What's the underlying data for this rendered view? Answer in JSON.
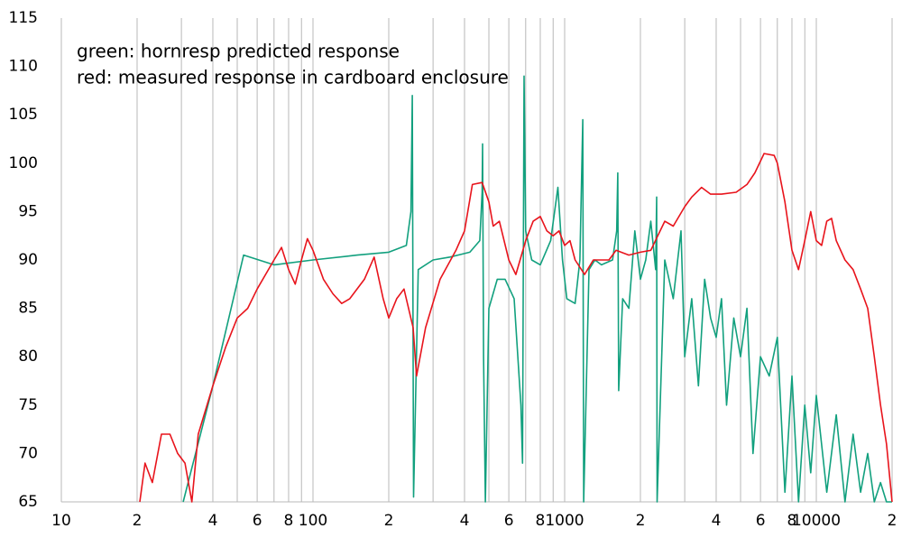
{
  "chart_data": {
    "type": "line",
    "xscale": "log",
    "annotations": [
      {
        "text": "green: hornresp predicted response",
        "color": "#12a07e"
      },
      {
        "text": "red: measured response in cardboard enclosure",
        "color": "#e8141c"
      }
    ],
    "xlim": [
      10,
      20000
    ],
    "ylim": [
      65,
      115
    ],
    "yticks": [
      65,
      70,
      75,
      80,
      85,
      90,
      95,
      100,
      105,
      110,
      115
    ],
    "xticks": [
      10,
      {
        "value": 20,
        "label": "2"
      },
      {
        "value": 40,
        "label": "4"
      },
      {
        "value": 60,
        "label": "6"
      },
      {
        "value": 80,
        "label": "8"
      },
      100,
      {
        "value": 200,
        "label": "2"
      },
      {
        "value": 400,
        "label": "4"
      },
      {
        "value": 600,
        "label": "6"
      },
      {
        "value": 800,
        "label": "8"
      },
      1000,
      {
        "value": 2000,
        "label": "2"
      },
      {
        "value": 4000,
        "label": "4"
      },
      {
        "value": 6000,
        "label": "6"
      },
      {
        "value": 8000,
        "label": "8"
      },
      10000,
      {
        "value": 20000,
        "label": "2"
      }
    ],
    "xgrid": [
      10,
      20,
      30,
      40,
      50,
      60,
      70,
      80,
      90,
      100,
      200,
      300,
      400,
      500,
      600,
      700,
      800,
      900,
      1000,
      2000,
      3000,
      4000,
      5000,
      6000,
      7000,
      8000,
      9000,
      10000,
      20000
    ],
    "grid": true,
    "series": [
      {
        "color": "#12a07e",
        "x": [
          30.5,
          40,
          53,
          70,
          100,
          150,
          200,
          235,
          245,
          248,
          251,
          262,
          300,
          350,
          420,
          460,
          470,
          472,
          476,
          484,
          500,
          540,
          580,
          630,
          670,
          680,
          690,
          700,
          740,
          800,
          880,
          940,
          980,
          1020,
          1100,
          1150,
          1180,
          1190,
          1250,
          1320,
          1400,
          1550,
          1610,
          1626,
          1640,
          1700,
          1800,
          1900,
          2000,
          2100,
          2200,
          2300,
          2320,
          2330,
          2500,
          2700,
          2900,
          3000,
          3200,
          3400,
          3600,
          3800,
          4000,
          4200,
          4400,
          4700,
          5000,
          5300,
          5600,
          6000,
          6500,
          7000,
          7500,
          8000,
          8500,
          9000,
          9500,
          10000,
          11000,
          12000,
          13000,
          14000,
          15000,
          16000,
          17000,
          18000,
          19000,
          20000
        ],
        "values": [
          65,
          77,
          90.5,
          89.5,
          90,
          90.5,
          90.8,
          91.5,
          95,
          107,
          65.5,
          89,
          90,
          90.3,
          90.8,
          92,
          97,
          102,
          80,
          65,
          85,
          88,
          88,
          86,
          75,
          69,
          109,
          93,
          90,
          89.5,
          92,
          97.5,
          90,
          86,
          85.5,
          90,
          104.5,
          65,
          89,
          90,
          89.5,
          90,
          93,
          99,
          76.5,
          86,
          85,
          93,
          88,
          90,
          94,
          89,
          96.5,
          65,
          90,
          86,
          93,
          80,
          86,
          77,
          88,
          84,
          82,
          86,
          75,
          84,
          80,
          85,
          70,
          80,
          78,
          82,
          66,
          78,
          65,
          75,
          68,
          76,
          66,
          74,
          65,
          72,
          66,
          70,
          65,
          67,
          65,
          65
        ]
      },
      {
        "color": "#e8141c",
        "x": [
          20.5,
          21.5,
          23,
          25,
          27,
          29,
          31,
          33,
          35,
          40,
          45,
          50,
          55,
          60,
          70,
          75,
          80,
          85,
          90,
          95,
          100,
          110,
          120,
          130,
          140,
          160,
          175,
          190,
          200,
          215,
          230,
          250,
          258,
          280,
          320,
          370,
          400,
          430,
          470,
          500,
          520,
          550,
          600,
          640,
          700,
          750,
          800,
          850,
          900,
          950,
          1000,
          1050,
          1100,
          1200,
          1300,
          1500,
          1600,
          1800,
          2000,
          2200,
          2500,
          2700,
          3000,
          3200,
          3500,
          3800,
          4200,
          4800,
          5300,
          5700,
          6200,
          6800,
          7000,
          7500,
          8000,
          8500,
          9000,
          9500,
          10000,
          10500,
          11000,
          11500,
          12000,
          13000,
          14000,
          15000,
          16000,
          17000,
          18000,
          19000,
          20000
        ],
        "values": [
          65,
          69,
          67,
          72,
          72,
          70,
          69,
          65,
          72,
          77,
          81,
          84,
          85,
          87,
          90,
          91.3,
          89,
          87.5,
          90,
          92.2,
          91,
          88,
          86.5,
          85.5,
          86,
          88,
          90.3,
          86,
          84,
          86,
          87,
          83,
          78,
          83,
          88,
          91,
          93,
          97.8,
          98,
          96,
          93.5,
          94,
          90,
          88.5,
          92,
          94,
          94.5,
          93,
          92.5,
          93,
          91.5,
          92,
          90,
          88.5,
          90,
          90,
          91,
          90.5,
          90.8,
          91,
          94,
          93.5,
          95.5,
          96.5,
          97.5,
          96.8,
          96.8,
          97,
          97.8,
          99,
          101,
          100.8,
          100,
          96,
          91,
          89,
          92,
          95,
          92,
          91.5,
          94,
          94.3,
          92,
          90,
          89,
          87,
          85,
          80,
          75,
          71,
          65
        ]
      }
    ]
  }
}
